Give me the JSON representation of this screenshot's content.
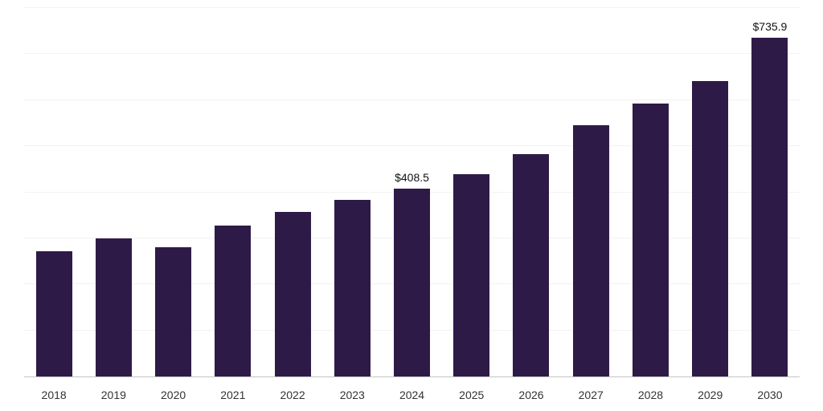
{
  "chart_data": {
    "type": "bar",
    "title": "",
    "xlabel": "",
    "ylabel": "",
    "categories": [
      "2018",
      "2019",
      "2020",
      "2021",
      "2022",
      "2023",
      "2024",
      "2025",
      "2026",
      "2027",
      "2028",
      "2029",
      "2030"
    ],
    "values": [
      272,
      300,
      281,
      327,
      357,
      384,
      408.5,
      440,
      483,
      545,
      592,
      641,
      735.9
    ],
    "annotations": [
      {
        "category": "2024",
        "text": "$408.5"
      },
      {
        "category": "2030",
        "text": "$735.9"
      }
    ],
    "ylim": [
      0,
      800
    ],
    "grid_step": 100,
    "grid": true,
    "legend": false,
    "bar_color": "#2E1A47",
    "gridline_color": "#f2f2f2",
    "axis_line_color": "#c4c4c4",
    "annotation_color": "#111111",
    "tick_color": "#333333"
  }
}
